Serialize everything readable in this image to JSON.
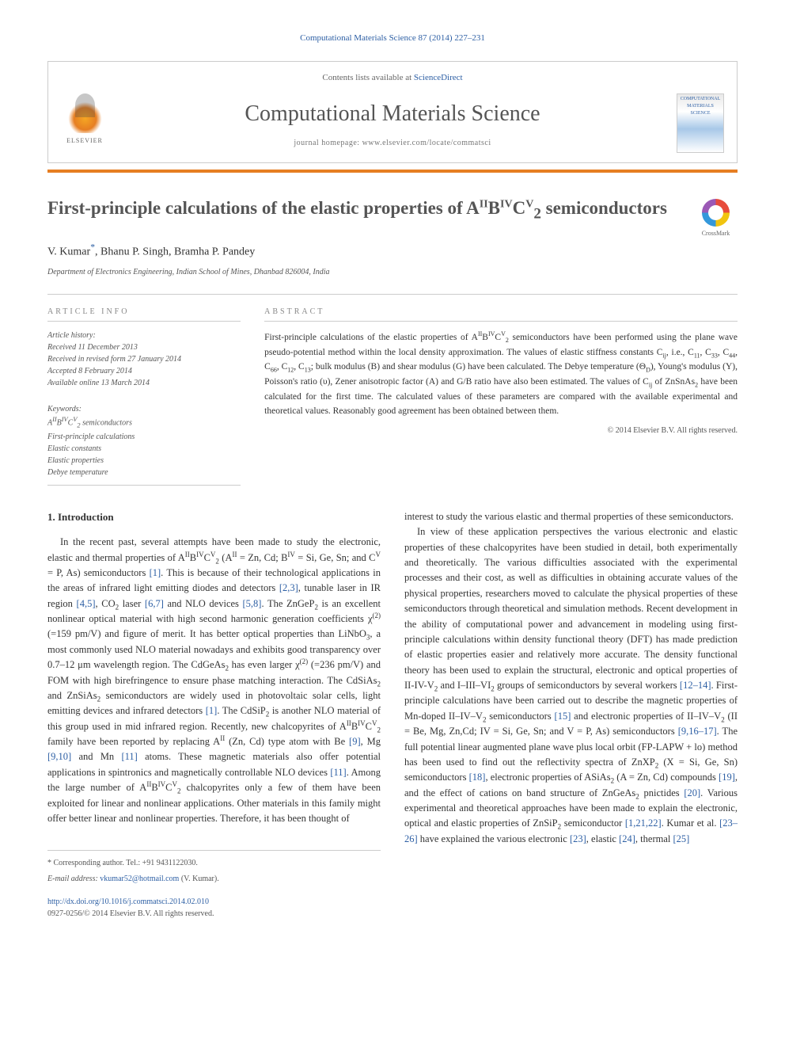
{
  "pagination": {
    "text": "Computational Materials Science 87 (2014) 227–231",
    "link_color": "#2d5fa4"
  },
  "header": {
    "contents_prefix": "Contents lists available at ",
    "contents_link": "ScienceDirect",
    "journal_title": "Computational Materials Science",
    "homepage_prefix": "journal homepage: ",
    "homepage_url": "www.elsevier.com/locate/commatsci",
    "publisher_label": "ELSEVIER",
    "cover_text": "COMPUTATIONAL MATERIALS SCIENCE"
  },
  "article": {
    "title_pre": "First-principle calculations of the elastic properties of A",
    "title_sup1": "II",
    "title_mid1": "B",
    "title_sup2": "IV",
    "title_mid2": "C",
    "title_sup3": "V",
    "title_sub": "2",
    "title_post": " semiconductors",
    "crossmark_label": "CrossMark"
  },
  "authors": {
    "list": "V. Kumar",
    "star": "*",
    "rest": ", Bhanu P. Singh, Bramha P. Pandey"
  },
  "affiliation": "Department of Electronics Engineering, Indian School of Mines, Dhanbad 826004, India",
  "info": {
    "header": "article info",
    "history_label": "Article history:",
    "received": "Received 11 December 2013",
    "revised": "Received in revised form 27 January 2014",
    "accepted": "Accepted 8 February 2014",
    "online": "Available online 13 March 2014",
    "keywords_label": "Keywords:",
    "kw1_pre": "A",
    "kw1_sup1": "II",
    "kw1_mid1": "B",
    "kw1_sup2": "IV",
    "kw1_mid2": "C",
    "kw1_sup3": "V",
    "kw1_sub": "2",
    "kw1_post": " semiconductors",
    "kw2": "First-principle calculations",
    "kw3": "Elastic constants",
    "kw4": "Elastic properties",
    "kw5": "Debye temperature"
  },
  "abstract": {
    "header": "abstract",
    "text_1": "First-principle calculations of the elastic properties of A",
    "sup_a": "II",
    "text_2": "B",
    "sup_b": "IV",
    "text_3": "C",
    "sup_c": "V",
    "sub_2": "2",
    "text_4": " semiconductors have been performed using the plane wave pseudo-potential method within the local density approximation. The values of elastic stiffness constants C",
    "sub_ij": "ij",
    "text_5": ", i.e., C",
    "c11": "11",
    "text_6": ", C",
    "c33": "33",
    "text_7": ", C",
    "c44": "44",
    "text_8": ", C",
    "c66": "66",
    "text_9": ", C",
    "c12": "12",
    "text_10": ", C",
    "c13": "13",
    "text_11": "; bulk modulus (B) and shear modulus (G) have been calculated. The Debye temperature (Θ",
    "sub_d": "D",
    "text_12": "), Young's modulus (Y), Poisson's ratio (υ), Zener anisotropic factor (A) and G/B ratio have also been estimated. The values of C",
    "sub_ij2": "ij",
    "text_13": " of ZnSnAs",
    "sub_2b": "2",
    "text_14": " have been calculated for the first time. The calculated values of these parameters are compared with the available experimental and theoretical values. Reasonably good agreement has been obtained between them.",
    "copyright": "© 2014 Elsevier B.V. All rights reserved."
  },
  "body": {
    "intro_heading": "1. Introduction",
    "col1_p1_a": "In the recent past, several attempts have been made to study the electronic, elastic and thermal properties of A",
    "col1_sup1": "II",
    "col1_p1_b": "B",
    "col1_sup2": "IV",
    "col1_p1_c": "C",
    "col1_sup3": "V",
    "col1_sub1": "2",
    "col1_p1_d": " (A",
    "col1_sup4": "II",
    "col1_p1_e": " = Zn, Cd; B",
    "col1_sup5": "IV",
    "col1_p1_f": " = Si, Ge, Sn; and C",
    "col1_sup6": "V",
    "col1_p1_g": " = P, As) semiconductors ",
    "col1_ref1": "[1]",
    "col1_p1_h": ". This is because of their technological applications in the areas of infrared light emitting diodes and detectors ",
    "col1_ref2": "[2,3]",
    "col1_p1_i": ", tunable laser in IR region ",
    "col1_ref3": "[4,5]",
    "col1_p1_j": ", CO",
    "col1_sub2": "2",
    "col1_p1_k": " laser ",
    "col1_ref4": "[6,7]",
    "col1_p1_l": " and NLO devices ",
    "col1_ref5": "[5,8]",
    "col1_p1_m": ". The ZnGeP",
    "col1_sub3": "2",
    "col1_p1_n": " is an excellent nonlinear optical material with high second harmonic generation coefficients χ",
    "col1_sup7": "(2)",
    "col1_p1_o": " (=159 pm/V) and figure of merit. It has better optical properties than LiNbO",
    "col1_sub4": "3",
    "col1_p1_p": ", a most commonly used NLO material nowadays and exhibits good transparency over 0.7–12 μm wavelength region. The CdGeAs",
    "col1_sub5": "2",
    "col1_p1_q": " has even larger χ",
    "col1_sup8": "(2)",
    "col1_p1_r": " (=236 pm/V) and FOM with high birefringence to ensure phase matching interaction. The CdSiAs",
    "col1_sub6": "2",
    "col1_p1_s": " and ZnSiAs",
    "col1_sub7": "2",
    "col1_p1_t": " semiconductors are widely used in photovoltaic solar cells, light emitting devices and infrared detectors ",
    "col1_ref6": "[1]",
    "col1_p1_u": ". The CdSiP",
    "col1_sub8": "2",
    "col1_p1_v": " is another NLO material of this group used in mid infrared region. Recently, new chalcopyrites of A",
    "col1_sup9": "II",
    "col1_p1_w": "B",
    "col1_sup10": "IV",
    "col1_p1_x": "C",
    "col1_sup11": "V",
    "col1_sub9": "2",
    "col1_p1_y": " family have been reported by replacing A",
    "col1_sup12": "II",
    "col1_p1_z": " (Zn, Cd) type atom with Be ",
    "col1_ref7": "[9]",
    "col1_p1_aa": ", Mg ",
    "col1_ref8": "[9,10]",
    "col1_p1_ab": " and Mn ",
    "col1_ref9": "[11]",
    "col1_p1_ac": " atoms. These magnetic materials also offer potential applications in spintronics and magnetically controllable NLO devices ",
    "col1_ref10": "[11]",
    "col1_p1_ad": ". Among the large number of A",
    "col1_sup13": "II",
    "col1_p1_ae": "B",
    "col1_sup14": "IV",
    "col1_p1_af": "C",
    "col1_sup15": "V",
    "col1_sub10": "2",
    "col1_p1_ag": " chalcopyrites only a few of them have been exploited for linear and nonlinear applications. Other materials in this family might offer better linear and nonlinear properties. Therefore, it has been thought of",
    "col2_p1": "interest to study the various elastic and thermal properties of these semiconductors.",
    "col2_p2_a": "In view of these application perspectives the various electronic and elastic properties of these chalcopyrites have been studied in detail, both experimentally and theoretically. The various difficulties associated with the experimental processes and their cost, as well as difficulties in obtaining accurate values of the physical properties, researchers moved to calculate the physical properties of these semiconductors through theoretical and simulation methods. Recent development in the ability of computational power and advancement in modeling using first-principle calculations within density functional theory (DFT) has made prediction of elastic properties easier and relatively more accurate. The density functional theory has been used to explain the structural, electronic and optical properties of II-IV-V",
    "col2_sub1": "2",
    "col2_p2_b": " and I–III–VI",
    "col2_sub2": "2",
    "col2_p2_c": " groups of semiconductors by several workers ",
    "col2_ref1": "[12–14]",
    "col2_p2_d": ". First-principle calculations have been carried out to describe the magnetic properties of Mn-doped II–IV–V",
    "col2_sub3": "2",
    "col2_p2_e": " semiconductors ",
    "col2_ref2": "[15]",
    "col2_p2_f": " and electronic properties of II–IV–V",
    "col2_sub4": "2",
    "col2_p2_g": " (II = Be, Mg, Zn,Cd; IV = Si, Ge, Sn; and V = P, As) semiconductors ",
    "col2_ref3": "[9,16–17]",
    "col2_p2_h": ". The full potential linear augmented plane wave plus local orbit (FP-LAPW + lo) method has been used to find out the reflectivity spectra of ZnXP",
    "col2_sub5": "2",
    "col2_p2_i": " (X = Si, Ge, Sn) semiconductors ",
    "col2_ref4": "[18]",
    "col2_p2_j": ", electronic properties of ASiAs",
    "col2_sub6": "2",
    "col2_p2_k": " (A = Zn, Cd) compounds ",
    "col2_ref5": "[19]",
    "col2_p2_l": ", and the effect of cations on band structure of ZnGeAs",
    "col2_sub7": "2",
    "col2_p2_m": " pnictides ",
    "col2_ref6": "[20]",
    "col2_p2_n": ". Various experimental and theoretical approaches have been made to explain the electronic, optical and elastic properties of ZnSiP",
    "col2_sub8": "2",
    "col2_p2_o": " semiconductor ",
    "col2_ref7": "[1,21,22]",
    "col2_p2_p": ". Kumar et al. ",
    "col2_ref8": "[23–26]",
    "col2_p2_q": " have explained the various electronic ",
    "col2_ref9": "[23]",
    "col2_p2_r": ", elastic ",
    "col2_ref10": "[24]",
    "col2_p2_s": ", thermal ",
    "col2_ref11": "[25]"
  },
  "footer": {
    "corr_star": "*",
    "corr_text": " Corresponding author. Tel.: +91 9431122030.",
    "email_label": "E-mail address: ",
    "email": "vkumar52@hotmail.com",
    "email_suffix": " (V. Kumar).",
    "doi_url": "http://dx.doi.org/10.1016/j.commatsci.2014.02.010",
    "issn_line": "0927-0256/© 2014 Elsevier B.V. All rights reserved."
  },
  "colors": {
    "link": "#2d5fa4",
    "orange": "#e67e22",
    "text": "#333333",
    "border": "#cccccc"
  }
}
